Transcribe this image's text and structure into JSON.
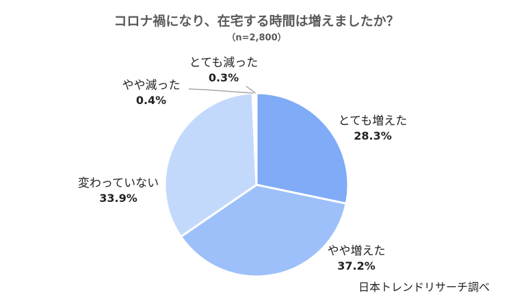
{
  "chart_data": {
    "type": "pie",
    "title": "コロナ禍になり、在宅する時間は増えましたか？",
    "subtitle": "（n=2,800）",
    "source": "日本トレンドリサーチ調べ",
    "slices": [
      {
        "name": "とても増えた",
        "value": 28.3,
        "label": "28.3%",
        "color": "#7fabf7"
      },
      {
        "name": "やや増えた",
        "value": 37.2,
        "label": "37.2%",
        "color": "#9dc0fa"
      },
      {
        "name": "変わっていない",
        "value": 33.9,
        "label": "33.9%",
        "color": "#c3d9fc"
      },
      {
        "name": "やや減った",
        "value": 0.4,
        "label": "0.4%",
        "color": "#dde9fd"
      },
      {
        "name": "とても減った",
        "value": 0.3,
        "label": "0.3%",
        "color": "#eef4fe"
      }
    ]
  }
}
